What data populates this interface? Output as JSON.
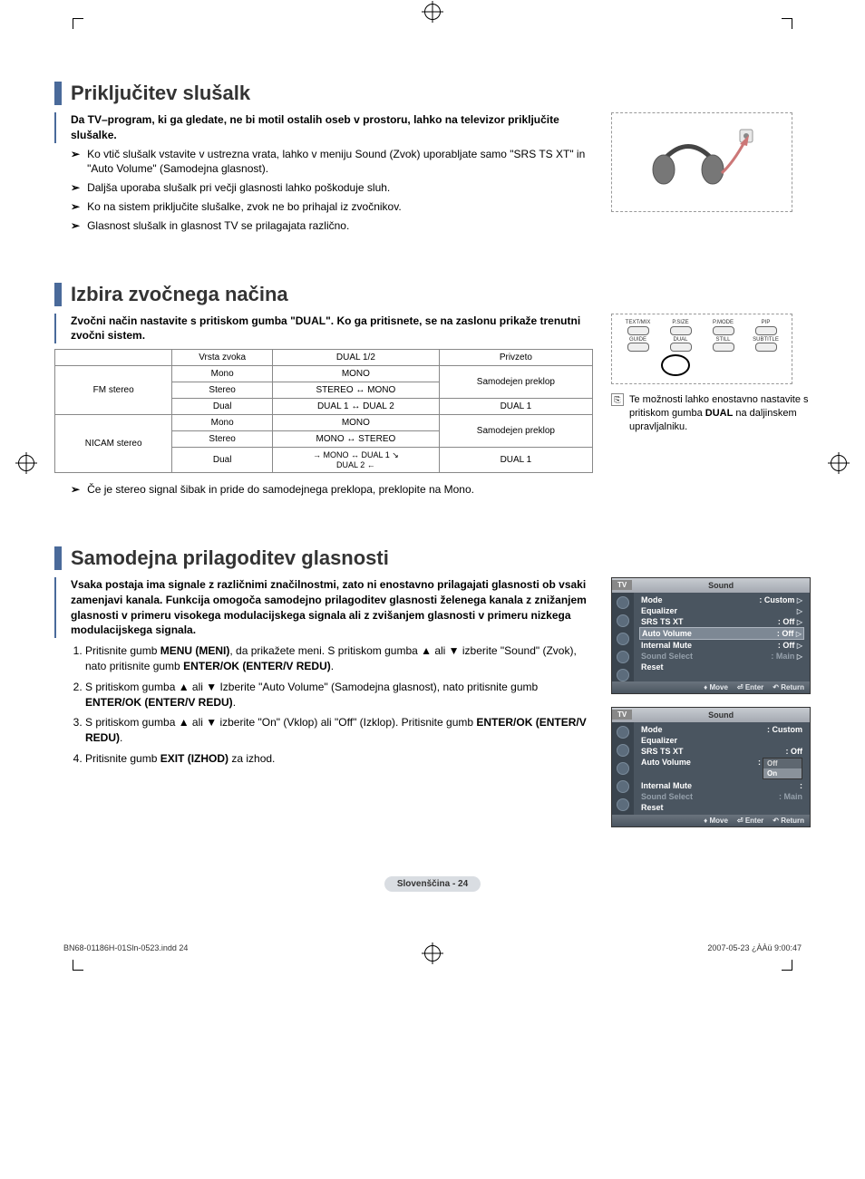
{
  "colors": {
    "accent_bar": "#4a6a9a",
    "osd_bg": "#4a5560",
    "osd_icon_col": "#3a444e",
    "osd_highlight": "#7d8894",
    "osd_dim_text": "#95a0ab",
    "page_label_bg": "#d9dde2"
  },
  "section1": {
    "title": "Priključitev slušalk",
    "intro": "Da TV–program, ki ga gledate, ne bi motil ostalih oseb v prostoru, lahko na televizor priključite slušalke.",
    "bullets": [
      "Ko vtič slušalk vstavite v ustrezna vrata, lahko v meniju Sound (Zvok) uporabljate samo \"SRS TS XT\" in \"Auto Volume\" (Samodejna glasnost).",
      "Daljša uporaba slušalk pri večji glasnosti lahko poškoduje sluh.",
      "Ko na sistem priključite slušalke, zvok ne bo prihajal iz zvočnikov.",
      "Glasnost slušalk in glasnost TV se prilagajata različno."
    ]
  },
  "section2": {
    "title": "Izbira zvočnega načina",
    "intro": "Zvočni način nastavite s pritiskom gumba \"DUAL\". Ko ga pritisnete, se na zaslonu prikaže trenutni zvočni sistem.",
    "table": {
      "headers": [
        "",
        "Vrsta zvoka",
        "DUAL 1/2",
        "Privzeto"
      ],
      "rows": [
        {
          "group": "FM stereo",
          "type": "Mono",
          "dual": "MONO",
          "default_group": "Samodejen preklop",
          "default_rowspan": 2
        },
        {
          "group": "",
          "type": "Stereo",
          "dual": "STEREO ↔ MONO"
        },
        {
          "group": "",
          "type": "Dual",
          "dual": "DUAL 1 ↔ DUAL 2",
          "default": "DUAL 1"
        },
        {
          "group": "NICAM stereo",
          "type": "Mono",
          "dual": "MONO",
          "default_group": "Samodejen preklop",
          "default_rowspan": 2
        },
        {
          "group": "",
          "type": "Stereo",
          "dual": "MONO ↔ STEREO"
        },
        {
          "group": "",
          "type": "Dual",
          "dual": "→ MONO ↔ DUAL 1 ↘\nDUAL 2 ←",
          "default": "DUAL 1"
        }
      ]
    },
    "remote": {
      "top_labels": [
        "TEXT/MIX",
        "P.SIZE",
        "P.MODE",
        "PIP"
      ],
      "bottom_labels": [
        "GUIDE",
        "DUAL",
        "STILL",
        "SUBTITLE"
      ]
    },
    "tip_prefix": "Te možnosti lahko enostavno nastavite s pritiskom gumba ",
    "tip_bold": "DUAL",
    "tip_suffix": " na daljinskem upravljalniku.",
    "footnote": "Če je stereo signal šibak in pride do samodejnega preklopa, preklopite na Mono."
  },
  "section3": {
    "title": "Samodejna prilagoditev glasnosti",
    "intro": "Vsaka postaja ima signale z različnimi značilnostmi, zato ni enostavno prilagajati glasnosti ob vsaki zamenjavi kanala. Funkcija omogoča samodejno prilagoditev glasnosti želenega kanala z znižanjem glasnosti v primeru visokega modulacijskega signala ali z zvišanjem glasnosti v primeru nizkega modulacijskega signala.",
    "steps": [
      "Pritisnite gumb <b>MENU (MENI)</b>, da prikažete meni. S pritiskom gumba ▲ ali ▼ izberite \"Sound\" (Zvok), nato pritisnite gumb <b>ENTER/OK (ENTER/V REDU)</b>.",
      "S pritiskom gumba ▲ ali ▼ Izberite \"Auto Volume\" (Samodejna glasnost), nato pritisnite gumb <b>ENTER/OK (ENTER/V REDU)</b>.",
      "S pritiskom gumba ▲ ali ▼ izberite \"On\" (Vklop) ali \"Off\" (Izklop). Pritisnite gumb <b>ENTER/OK (ENTER/V REDU)</b>.",
      "Pritisnite gumb <b>EXIT (IZHOD)</b> za izhod."
    ],
    "osd1": {
      "tv": "TV",
      "title": "Sound",
      "rows": [
        {
          "label": "Mode",
          "value": ": Custom",
          "arrow": true
        },
        {
          "label": "Equalizer",
          "value": "",
          "arrow": true
        },
        {
          "label": "SRS TS XT",
          "value": ": Off",
          "arrow": true
        },
        {
          "label": "Auto Volume",
          "value": ": Off",
          "arrow": true,
          "highlight": true
        },
        {
          "label": "Internal Mute",
          "value": ": Off",
          "arrow": true
        },
        {
          "label": "Sound Select",
          "value": ": Main",
          "arrow": true,
          "dim": true
        },
        {
          "label": "Reset",
          "value": "",
          "arrow": false
        }
      ],
      "footer": {
        "move": "Move",
        "enter": "Enter",
        "return": "Return"
      }
    },
    "osd2": {
      "tv": "TV",
      "title": "Sound",
      "rows": [
        {
          "label": "Mode",
          "value": ": Custom"
        },
        {
          "label": "Equalizer",
          "value": ""
        },
        {
          "label": "SRS TS XT",
          "value": ": Off"
        },
        {
          "label": "Auto Volume",
          "value": ":",
          "dropdown": [
            "Off",
            "On"
          ],
          "selected": "On"
        },
        {
          "label": "Internal Mute",
          "value": ":"
        },
        {
          "label": "Sound Select",
          "value": ": Main",
          "dim": true
        },
        {
          "label": "Reset",
          "value": ""
        }
      ],
      "footer": {
        "move": "Move",
        "enter": "Enter",
        "return": "Return"
      }
    }
  },
  "page_label": "Slovenščina - 24",
  "footer": {
    "left": "BN68-01186H-01Sln-0523.indd   24",
    "right": "2007-05-23   ¿ÀÀü 9:00:47"
  }
}
